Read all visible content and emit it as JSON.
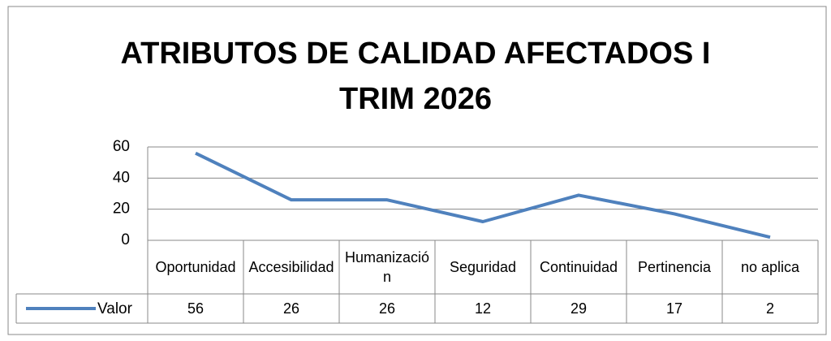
{
  "chart_data": {
    "type": "line",
    "title": "ATRIBUTOS DE CALIDAD AFECTADOS I TRIM 2026",
    "categories": [
      "Oportunidad",
      "Accesibilidad",
      "Humanización",
      "Seguridad",
      "Continuidad",
      "Pertinencia",
      "no aplica"
    ],
    "series": [
      {
        "name": "Valor",
        "color": "#4f81bd",
        "values": [
          56,
          26,
          26,
          12,
          29,
          17,
          2
        ]
      }
    ],
    "ylim": [
      0,
      60
    ],
    "yticks": [
      0,
      20,
      40,
      60
    ],
    "grid": true,
    "data_table": true
  }
}
